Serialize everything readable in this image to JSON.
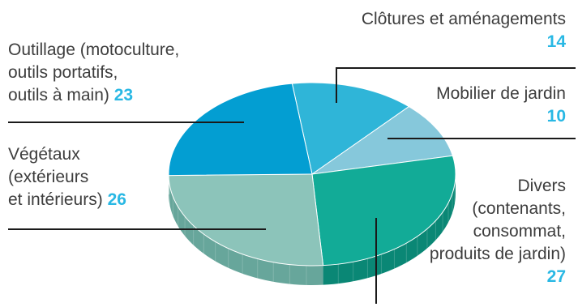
{
  "chart_data": {
    "type": "pie",
    "title": "",
    "unit": "",
    "slices": [
      {
        "label": "Clôtures et aménagements",
        "value": 14,
        "color": "#2fb5d8",
        "side": "#1f8fb0"
      },
      {
        "label": "Mobilier de jardin",
        "value": 10,
        "color": "#86c8db",
        "side": "#5fa4b8"
      },
      {
        "label": "Divers (contenants, consommat, produits de jardin)",
        "value": 27,
        "color": "#12ab97",
        "side": "#0a8775"
      },
      {
        "label": "Végétaux (extérieurs et intérieurs)",
        "value": 26,
        "color": "#8cc4ba",
        "side": "#67a69b"
      },
      {
        "label": "Outillage (motoculture, outils portatifs, outils à main)",
        "value": 23,
        "color": "#039ed2",
        "side": "#027ba6"
      }
    ]
  },
  "labels": {
    "clotures": {
      "lines": [
        "Clôtures et aménagements"
      ],
      "value": "14",
      "value_color": "#29b8e4"
    },
    "mobilier": {
      "lines": [
        "Mobilier de jardin"
      ],
      "value": "10",
      "value_color": "#29b8e4"
    },
    "divers": {
      "lines": [
        "Divers",
        "(contenants,",
        "consommat,",
        "produits de jardin)"
      ],
      "value": "27",
      "value_color": "#29b8e4"
    },
    "vegetaux": {
      "lines": [
        "Végétaux",
        "(extérieurs",
        "et intérieurs)"
      ],
      "value": "26",
      "value_color": "#29b8e4"
    },
    "outillage": {
      "lines": [
        "Outillage (motoculture,",
        "outils portatifs,",
        "outils à main)"
      ],
      "value": "23",
      "value_color": "#29b8e4"
    }
  }
}
